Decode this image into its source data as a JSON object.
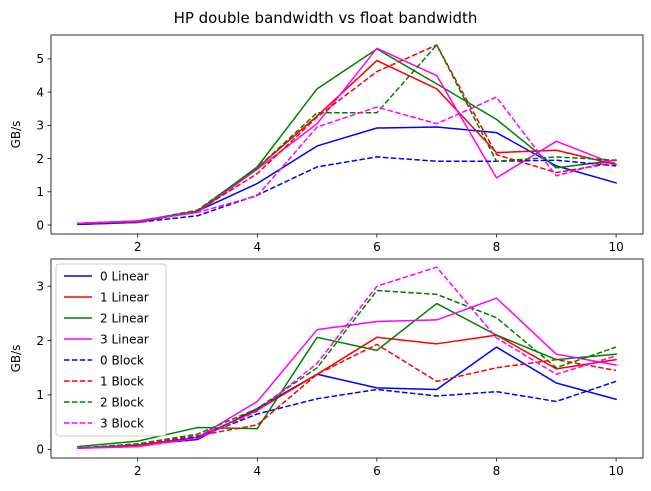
{
  "figure_title": "HP double bandwidth vs float bandwidth",
  "chart_data": [
    {
      "type": "line",
      "ylabel": "GB/s",
      "xlim": [
        0.55,
        10.45
      ],
      "ylim": [
        -0.27,
        5.72
      ],
      "xticks": [
        2,
        4,
        6,
        8,
        10
      ],
      "yticks": [
        0,
        1,
        2,
        3,
        4,
        5
      ],
      "x": [
        1,
        2,
        3,
        4,
        5,
        6,
        7,
        8,
        9,
        10
      ],
      "legend": null,
      "series": [
        {
          "name": "0 Linear",
          "color": "#0000ff",
          "style": "solid",
          "values": [
            0.02,
            0.08,
            0.42,
            1.25,
            2.38,
            2.92,
            2.95,
            2.78,
            1.78,
            1.27
          ]
        },
        {
          "name": "1 Linear",
          "color": "#ff0000",
          "style": "solid",
          "values": [
            0.05,
            0.1,
            0.42,
            1.72,
            3.28,
            4.95,
            4.1,
            2.18,
            2.25,
            1.82
          ]
        },
        {
          "name": "2 Linear",
          "color": "#008000",
          "style": "solid",
          "values": [
            0.05,
            0.12,
            0.42,
            1.75,
            4.1,
            5.3,
            4.25,
            3.18,
            1.72,
            1.95
          ]
        },
        {
          "name": "3 Linear",
          "color": "#ff00ff",
          "style": "solid",
          "values": [
            0.05,
            0.12,
            0.38,
            1.68,
            3.05,
            5.32,
            4.5,
            1.42,
            2.52,
            1.82
          ]
        },
        {
          "name": "0 Block",
          "color": "#0000ff",
          "style": "dashed",
          "values": [
            0.02,
            0.08,
            0.28,
            0.9,
            1.75,
            2.05,
            1.92,
            1.92,
            1.95,
            1.78
          ]
        },
        {
          "name": "1 Block",
          "color": "#ff0000",
          "style": "dashed",
          "values": [
            0.05,
            0.08,
            0.42,
            1.55,
            3.25,
            4.62,
            5.42,
            2.12,
            1.58,
            1.88
          ]
        },
        {
          "name": "2 Block",
          "color": "#008000",
          "style": "dashed",
          "values": [
            0.05,
            0.1,
            0.45,
            1.72,
            3.38,
            3.38,
            5.42,
            1.92,
            2.05,
            1.95
          ]
        },
        {
          "name": "3 Block",
          "color": "#ff00ff",
          "style": "dashed",
          "values": [
            0.05,
            0.12,
            0.38,
            0.88,
            2.95,
            3.55,
            3.05,
            3.85,
            1.48,
            1.98
          ]
        }
      ]
    },
    {
      "type": "line",
      "ylabel": "GB/s",
      "xlim": [
        0.55,
        10.45
      ],
      "ylim": [
        -0.16,
        3.5
      ],
      "xticks": [
        2,
        4,
        6,
        8,
        10
      ],
      "yticks": [
        0,
        1,
        2,
        3
      ],
      "x": [
        1,
        2,
        3,
        4,
        5,
        6,
        7,
        8,
        9,
        10
      ],
      "legend": "upper left",
      "series": [
        {
          "name": "0 Linear",
          "color": "#0000ff",
          "style": "solid",
          "values": [
            0.02,
            0.08,
            0.18,
            0.75,
            1.38,
            1.13,
            1.1,
            1.88,
            1.22,
            0.92
          ]
        },
        {
          "name": "1 Linear",
          "color": "#ff0000",
          "style": "solid",
          "values": [
            0.02,
            0.08,
            0.22,
            0.72,
            1.38,
            2.06,
            1.94,
            2.1,
            1.48,
            1.65
          ]
        },
        {
          "name": "2 Linear",
          "color": "#008000",
          "style": "solid",
          "values": [
            0.05,
            0.15,
            0.4,
            0.38,
            2.06,
            1.82,
            2.68,
            2.1,
            1.65,
            1.75
          ]
        },
        {
          "name": "3 Linear",
          "color": "#ff00ff",
          "style": "solid",
          "values": [
            0.02,
            0.05,
            0.22,
            0.88,
            2.2,
            2.35,
            2.38,
            2.78,
            1.75,
            1.55
          ]
        },
        {
          "name": "0 Block",
          "color": "#0000ff",
          "style": "dashed",
          "values": [
            0.02,
            0.1,
            0.22,
            0.65,
            0.93,
            1.1,
            0.98,
            1.06,
            0.88,
            1.25
          ]
        },
        {
          "name": "1 Block",
          "color": "#ff0000",
          "style": "dashed",
          "values": [
            0.02,
            0.08,
            0.25,
            0.45,
            1.38,
            1.93,
            1.25,
            1.5,
            1.65,
            1.45
          ]
        },
        {
          "name": "2 Block",
          "color": "#008000",
          "style": "dashed",
          "values": [
            0.02,
            0.1,
            0.28,
            0.75,
            1.5,
            2.92,
            2.85,
            2.42,
            1.5,
            1.88
          ]
        },
        {
          "name": "3 Block",
          "color": "#ff00ff",
          "style": "dashed",
          "values": [
            0.02,
            0.05,
            0.2,
            0.7,
            1.58,
            3.0,
            3.35,
            2.05,
            1.38,
            1.72
          ]
        }
      ]
    }
  ]
}
